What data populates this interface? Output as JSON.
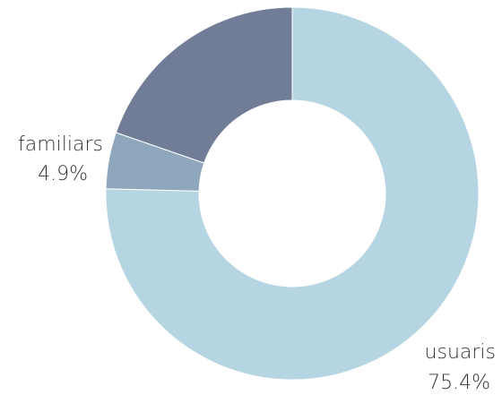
{
  "chart_data": {
    "type": "pie",
    "donut": true,
    "title": "",
    "slices": [
      {
        "label": "usuaris",
        "value": 75.4,
        "value_label": "75.4%",
        "color": "#b5d5e2"
      },
      {
        "label": "familiars",
        "value": 4.9,
        "value_label": "4.9%",
        "color": "#8fa7bc"
      },
      {
        "label": "",
        "value": 19.7,
        "value_label": "",
        "color": "#717d96"
      }
    ]
  }
}
